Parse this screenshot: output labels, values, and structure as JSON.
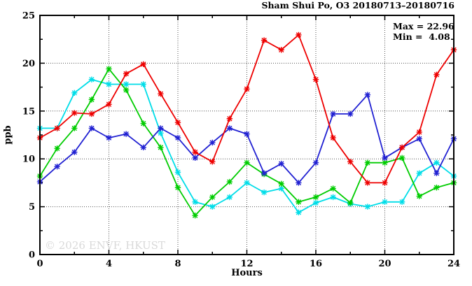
{
  "title": "Sham Shui Po, O3 20180713–20180716",
  "stats": {
    "max_label": "Max = 22.96",
    "min_label": "Min =  4.08"
  },
  "watermark": "© 2026 ENVF, HKUST",
  "colors": {
    "red": "#ee0000",
    "blue": "#2121d2",
    "green": "#00cc00",
    "cyan": "#00dde8",
    "grid": "#555555",
    "axis": "#000000",
    "watermark_gray": "#d9d9d9"
  },
  "chart_data": {
    "type": "line",
    "title": "Sham Shui Po, O3 20180713–20180716",
    "xlabel": "Hours",
    "ylabel": "ppb",
    "xlim": [
      0,
      24
    ],
    "ylim": [
      0,
      25
    ],
    "x_major_ticks": [
      0,
      4,
      8,
      12,
      16,
      20,
      24
    ],
    "x_minor_tick_step": 2,
    "y_major_ticks": [
      0,
      5,
      10,
      15,
      20,
      25
    ],
    "y_minor_tick_step": 2.5,
    "grid": "dotted-at-major-ticks",
    "legend_position": "none",
    "marker": "asterisk",
    "annotations": {
      "max": 22.96,
      "min": 4.08
    },
    "x": [
      0,
      1,
      2,
      3,
      4,
      5,
      6,
      7,
      8,
      9,
      10,
      11,
      12,
      13,
      14,
      15,
      16,
      17,
      18,
      19,
      20,
      21,
      22,
      23,
      24
    ],
    "series": [
      {
        "name": "cyan",
        "color": "#00dde8",
        "values": [
          13.2,
          13.2,
          16.9,
          18.3,
          17.8,
          17.8,
          17.8,
          12.7,
          8.6,
          5.5,
          5.0,
          6.0,
          7.5,
          6.5,
          6.9,
          4.4,
          5.4,
          6.0,
          5.3,
          5.0,
          5.5,
          5.5,
          8.5,
          9.6,
          8.2
        ]
      },
      {
        "name": "green",
        "color": "#00cc00",
        "values": [
          8.2,
          11.1,
          13.2,
          16.2,
          19.4,
          17.2,
          13.7,
          11.2,
          7.0,
          4.08,
          6.0,
          7.6,
          9.6,
          8.4,
          7.4,
          5.5,
          6.0,
          6.9,
          5.4,
          9.6,
          9.6,
          10.1,
          6.1,
          7.0,
          7.5
        ]
      },
      {
        "name": "blue",
        "color": "#2121d2",
        "values": [
          7.6,
          9.2,
          10.7,
          13.2,
          12.2,
          12.6,
          11.2,
          13.2,
          12.2,
          10.1,
          11.7,
          13.2,
          12.6,
          8.5,
          9.5,
          7.5,
          9.6,
          14.7,
          14.7,
          16.7,
          10.1,
          11.2,
          12.1,
          8.5,
          12.1
        ]
      },
      {
        "name": "red",
        "color": "#ee0000",
        "values": [
          12.2,
          13.2,
          14.8,
          14.7,
          15.7,
          18.9,
          19.9,
          16.8,
          13.8,
          10.7,
          9.7,
          14.2,
          17.3,
          22.4,
          21.4,
          22.96,
          18.3,
          12.2,
          9.7,
          7.5,
          7.5,
          11.2,
          12.8,
          18.8,
          21.4
        ]
      }
    ]
  }
}
